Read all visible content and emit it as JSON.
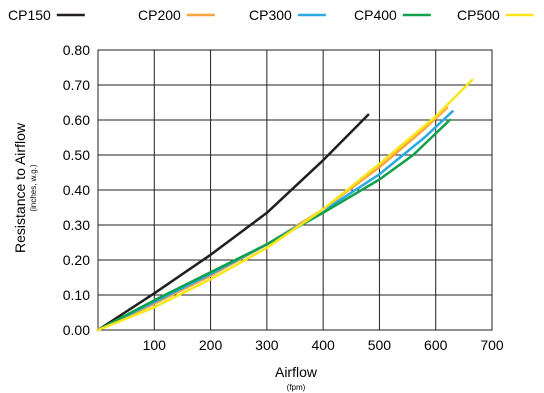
{
  "chart_data": {
    "type": "line",
    "title": "",
    "xlabel": "Airflow",
    "xlabel_sub": "(fpm)",
    "ylabel": "Resistance to Airflow",
    "ylabel_sub": "(inches, w.g.)",
    "xlim": [
      0,
      700
    ],
    "ylim": [
      0,
      0.8
    ],
    "x_ticks": [
      100,
      200,
      300,
      400,
      500,
      600,
      700
    ],
    "x_tick_labels": [
      "100",
      "200",
      "300",
      "400",
      "500",
      "600",
      "700"
    ],
    "y_ticks": [
      0,
      0.1,
      0.2,
      0.3,
      0.4,
      0.5,
      0.6,
      0.7,
      0.8
    ],
    "y_tick_labels": [
      "0.00",
      "0.10",
      "0.20",
      "0.30",
      "0.40",
      "0.50",
      "0.60",
      "0.70",
      "0.80"
    ],
    "grid": true,
    "legend_position": "top",
    "series": [
      {
        "name": "CP150",
        "color": "#231f20",
        "x": [
          0,
          100,
          200,
          300,
          400,
          480
        ],
        "y": [
          0,
          0.105,
          0.215,
          0.335,
          0.485,
          0.615
        ]
      },
      {
        "name": "CP200",
        "color": "#f7a541",
        "x": [
          0,
          100,
          200,
          300,
          400,
          500,
          580,
          620
        ],
        "y": [
          0,
          0.075,
          0.155,
          0.245,
          0.345,
          0.465,
          0.575,
          0.635
        ]
      },
      {
        "name": "CP300",
        "color": "#29a9e1",
        "x": [
          0,
          100,
          200,
          300,
          400,
          500,
          580,
          630
        ],
        "y": [
          0,
          0.08,
          0.16,
          0.245,
          0.34,
          0.445,
          0.55,
          0.625
        ]
      },
      {
        "name": "CP400",
        "color": "#12a04b",
        "x": [
          0,
          100,
          200,
          300,
          400,
          500,
          560,
          625
        ],
        "y": [
          0,
          0.085,
          0.165,
          0.245,
          0.335,
          0.43,
          0.5,
          0.6
        ]
      },
      {
        "name": "CP500",
        "color": "#f9e519",
        "x": [
          0,
          100,
          200,
          300,
          400,
          500,
          600,
          665
        ],
        "y": [
          0,
          0.065,
          0.145,
          0.235,
          0.345,
          0.475,
          0.61,
          0.715
        ]
      }
    ]
  }
}
